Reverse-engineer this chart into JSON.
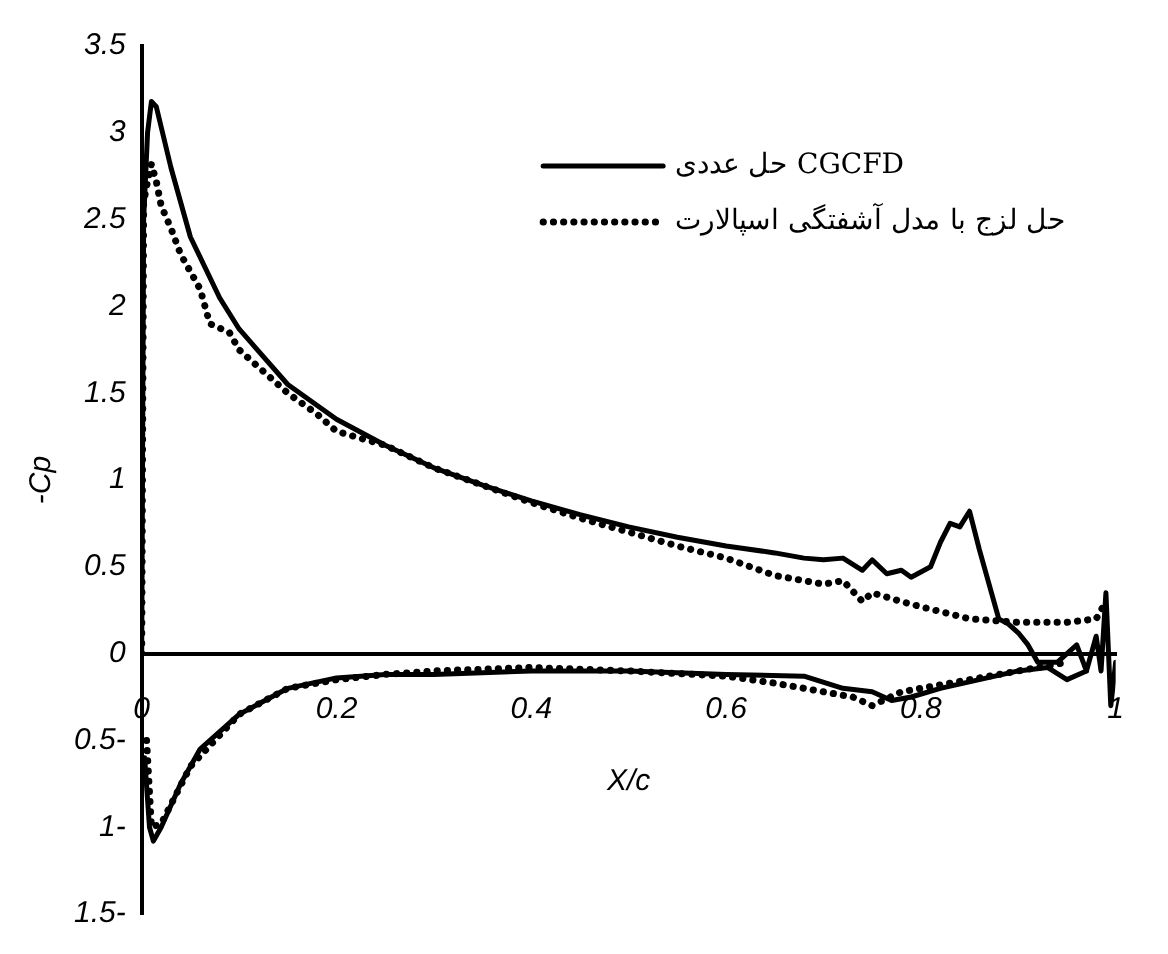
{
  "chart_data": {
    "type": "line",
    "xlabel": "X/c",
    "ylabel": "-Cp",
    "xlim": [
      0,
      1
    ],
    "ylim": [
      -1.5,
      3.5
    ],
    "xticks": [
      0,
      0.2,
      0.4,
      0.6,
      0.8,
      1
    ],
    "yticks": [
      {
        "value": -1.5,
        "label": "1.5-"
      },
      {
        "value": -1,
        "label": "1-"
      },
      {
        "value": -0.5,
        "label": "0.5-"
      },
      0,
      0.5,
      1,
      1.5,
      2,
      2.5,
      3,
      3.5
    ],
    "grid": false,
    "legend": "top right",
    "marker": "none",
    "series": [
      {
        "name": "حل عددی CGCFD",
        "color": "#000000",
        "line_style": "solid",
        "x": [
          0,
          0.002,
          0.006,
          0.01,
          0.015,
          0.03,
          0.05,
          0.08,
          0.1,
          0.15,
          0.2,
          0.25,
          0.3,
          0.35,
          0.4,
          0.45,
          0.5,
          0.55,
          0.6,
          0.65,
          0.68,
          0.7,
          0.72,
          0.74,
          0.75,
          0.765,
          0.78,
          0.79,
          0.81,
          0.82,
          0.83,
          0.84,
          0.85,
          0.86,
          0.87,
          0.88,
          0.89,
          0.9,
          0.91,
          0.92,
          0.94,
          0.96,
          0.97,
          0.98,
          0.985,
          0.99,
          0.995,
          1
        ],
        "values": [
          0,
          2.5,
          3,
          3.18,
          3.15,
          2.8,
          2.4,
          2.05,
          1.87,
          1.55,
          1.35,
          1.2,
          1.07,
          0.97,
          0.88,
          0.8,
          0.73,
          0.67,
          0.62,
          0.58,
          0.55,
          0.54,
          0.55,
          0.48,
          0.54,
          0.46,
          0.48,
          0.44,
          0.5,
          0.64,
          0.75,
          0.73,
          0.82,
          0.6,
          0.4,
          0.2,
          0.17,
          0.12,
          0.05,
          -0.05,
          -0.05,
          0.05,
          -0.1,
          0.1,
          -0.1,
          0.35,
          -0.3,
          -0.05
        ]
      },
      {
        "color": "#000000",
        "line_style": "solid",
        "x": [
          0.003,
          0.008,
          0.012,
          0.02,
          0.04,
          0.06,
          0.1,
          0.15,
          0.2,
          0.25,
          0.3,
          0.4,
          0.5,
          0.6,
          0.68,
          0.72,
          0.75,
          0.77,
          0.79,
          0.82,
          0.86,
          0.9,
          0.93,
          0.95,
          0.97
        ],
        "values": [
          -0.6,
          -1,
          -1.08,
          -1,
          -0.75,
          -0.55,
          -0.35,
          -0.2,
          -0.14,
          -0.12,
          -0.12,
          -0.1,
          -0.1,
          -0.12,
          -0.13,
          -0.2,
          -0.22,
          -0.27,
          -0.25,
          -0.2,
          -0.15,
          -0.1,
          -0.08,
          -0.15,
          -0.1
        ]
      },
      {
        "name": "حل لزج با مدل آشفتگی اسپالارت",
        "color": "#000000",
        "line_style": "dotted",
        "x": [
          0,
          0.002,
          0.006,
          0.01,
          0.015,
          0.02,
          0.03,
          0.04,
          0.05,
          0.06,
          0.07,
          0.09,
          0.1,
          0.12,
          0.15,
          0.18,
          0.2,
          0.25,
          0.3,
          0.35,
          0.4,
          0.45,
          0.5,
          0.55,
          0.6,
          0.65,
          0.7,
          0.72,
          0.74,
          0.75,
          0.78,
          0.8,
          0.85,
          0.9,
          0.95,
          0.98,
          0.99
        ],
        "values": [
          0,
          2.6,
          2.72,
          2.82,
          2.72,
          2.58,
          2.45,
          2.3,
          2.2,
          2.1,
          1.9,
          1.85,
          1.75,
          1.65,
          1.5,
          1.38,
          1.28,
          1.2,
          1.07,
          0.97,
          0.87,
          0.78,
          0.7,
          0.62,
          0.55,
          0.45,
          0.4,
          0.42,
          0.3,
          0.35,
          0.3,
          0.27,
          0.2,
          0.18,
          0.18,
          0.2,
          0.3
        ]
      },
      {
        "color": "#000000",
        "line_style": "dotted",
        "x": [
          0.005,
          0.01,
          0.02,
          0.05,
          0.1,
          0.15,
          0.2,
          0.25,
          0.3,
          0.4,
          0.5,
          0.6,
          0.65,
          0.7,
          0.73,
          0.75,
          0.78,
          0.85,
          0.9,
          0.95
        ],
        "values": [
          -0.5,
          -1,
          -0.98,
          -0.65,
          -0.35,
          -0.2,
          -0.15,
          -0.12,
          -0.1,
          -0.08,
          -0.1,
          -0.13,
          -0.17,
          -0.22,
          -0.25,
          -0.3,
          -0.22,
          -0.15,
          -0.1,
          -0.05
        ]
      }
    ]
  }
}
